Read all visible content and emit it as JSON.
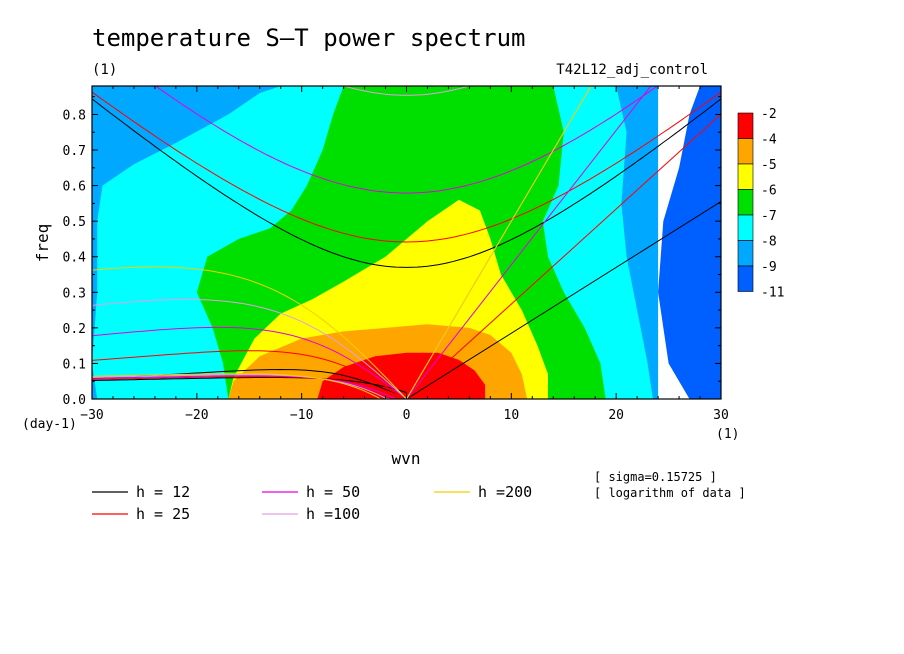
{
  "chart_data": {
    "type": "heatmap",
    "title": "temperature S–T power spectrum",
    "subtitle_left": "(1)",
    "subtitle_right": "T42L12_adj_control",
    "xlabel": "wvn",
    "ylabel": "freq",
    "x_unit": "(1)",
    "y_unit": "(day-1)",
    "xlim": [
      -30,
      30
    ],
    "ylim": [
      0,
      0.88
    ],
    "x_ticks": [
      -30,
      -20,
      -10,
      0,
      10,
      20,
      30
    ],
    "x_tick_labels": [
      "−30",
      "−20",
      "−10",
      "0",
      "10",
      "20",
      "30"
    ],
    "y_ticks": [
      0,
      0.1,
      0.2,
      0.3,
      0.4,
      0.5,
      0.6,
      0.7,
      0.8
    ],
    "y_tick_labels": [
      "0.0",
      "0.1",
      "0.2",
      "0.3",
      "0.4",
      "0.5",
      "0.6",
      "0.7",
      "0.8"
    ],
    "colorbar": {
      "labels": [
        "-2",
        "-4",
        "-5",
        "-6",
        "-7",
        "-8",
        "-9",
        "-11"
      ],
      "colors": [
        "#ff0000",
        "#ffa500",
        "#ffff00",
        "#00e000",
        "#00ffff",
        "#00a8ff",
        "#0060ff"
      ]
    },
    "regions": [
      {
        "level": "-9",
        "color": "#00a8ff",
        "points": [
          [
            -30,
            0
          ],
          [
            -30,
            0.88
          ],
          [
            24,
            0.88
          ],
          [
            24,
            0
          ]
        ]
      },
      {
        "level": "-8",
        "color": "#00ffff",
        "points": [
          [
            -29.5,
            0
          ],
          [
            -30,
            0.1
          ],
          [
            -29.5,
            0.3
          ],
          [
            -29.5,
            0.5
          ],
          [
            -29,
            0.6
          ],
          [
            -26,
            0.66
          ],
          [
            -22,
            0.72
          ],
          [
            -17,
            0.8
          ],
          [
            -14,
            0.86
          ],
          [
            -12,
            0.88
          ],
          [
            20,
            0.88
          ],
          [
            21,
            0.75
          ],
          [
            20.5,
            0.55
          ],
          [
            21,
            0.4
          ],
          [
            22,
            0.25
          ],
          [
            23,
            0.1
          ],
          [
            23.5,
            0
          ]
        ]
      },
      {
        "level": "-7",
        "color": "#00e000",
        "points": [
          [
            -17,
            0
          ],
          [
            -17.5,
            0.1
          ],
          [
            -18.5,
            0.2
          ],
          [
            -20,
            0.3
          ],
          [
            -19,
            0.4
          ],
          [
            -16,
            0.45
          ],
          [
            -13,
            0.48
          ],
          [
            -11,
            0.53
          ],
          [
            -9.5,
            0.6
          ],
          [
            -8,
            0.7
          ],
          [
            -7,
            0.8
          ],
          [
            -6,
            0.88
          ],
          [
            14,
            0.88
          ],
          [
            15,
            0.75
          ],
          [
            14.5,
            0.6
          ],
          [
            13,
            0.5
          ],
          [
            13.5,
            0.4
          ],
          [
            15,
            0.3
          ],
          [
            17,
            0.2
          ],
          [
            18.5,
            0.1
          ],
          [
            19,
            0
          ]
        ]
      },
      {
        "level": "-6",
        "color": "#ffff00",
        "points": [
          [
            -17,
            0
          ],
          [
            -16.5,
            0.06
          ],
          [
            -14.5,
            0.17
          ],
          [
            -12,
            0.24
          ],
          [
            -9,
            0.28
          ],
          [
            -6,
            0.33
          ],
          [
            -2,
            0.4
          ],
          [
            2,
            0.5
          ],
          [
            5,
            0.56
          ],
          [
            7,
            0.53
          ],
          [
            8,
            0.45
          ],
          [
            9,
            0.35
          ],
          [
            11,
            0.25
          ],
          [
            12.5,
            0.15
          ],
          [
            13.5,
            0.07
          ],
          [
            13.5,
            0
          ]
        ]
      },
      {
        "level": "-5",
        "color": "#ffa500",
        "points": [
          [
            -17,
            0
          ],
          [
            -16.5,
            0.05
          ],
          [
            -14,
            0.12
          ],
          [
            -10,
            0.17
          ],
          [
            -6,
            0.19
          ],
          [
            -2,
            0.2
          ],
          [
            2,
            0.21
          ],
          [
            6,
            0.2
          ],
          [
            8,
            0.18
          ],
          [
            10,
            0.13
          ],
          [
            11,
            0.07
          ],
          [
            11.5,
            0
          ]
        ]
      },
      {
        "level": "-4",
        "color": "#ff0000",
        "points": [
          [
            -8.5,
            0
          ],
          [
            -8,
            0.05
          ],
          [
            -6,
            0.09
          ],
          [
            -3,
            0.12
          ],
          [
            0,
            0.13
          ],
          [
            3,
            0.13
          ],
          [
            5,
            0.11
          ],
          [
            6.5,
            0.08
          ],
          [
            7.5,
            0.04
          ],
          [
            7.5,
            0
          ]
        ]
      }
    ],
    "dark_blue_band": {
      "level": "-11",
      "color": "#0060ff",
      "points": [
        [
          27,
          0
        ],
        [
          25,
          0.1
        ],
        [
          24,
          0.3
        ],
        [
          24.5,
          0.5
        ],
        [
          26,
          0.65
        ],
        [
          27,
          0.8
        ],
        [
          28,
          0.88
        ],
        [
          30,
          0.88
        ],
        [
          30,
          0
        ]
      ]
    },
    "dispersion_curves": [
      {
        "name": "h = 12",
        "color": "#000000",
        "h": 12
      },
      {
        "name": "h = 25",
        "color": "#ff0000",
        "h": 25
      },
      {
        "name": "h = 50",
        "color": "#e000e0",
        "h": 50
      },
      {
        "name": "h =100",
        "color": "#e0a0e0",
        "h": 100
      },
      {
        "name": "h =200",
        "color": "#f0d000",
        "h": 200
      }
    ],
    "annotations": [
      "[ sigma=0.15725 ]",
      "[ logarithm of data ]"
    ]
  }
}
